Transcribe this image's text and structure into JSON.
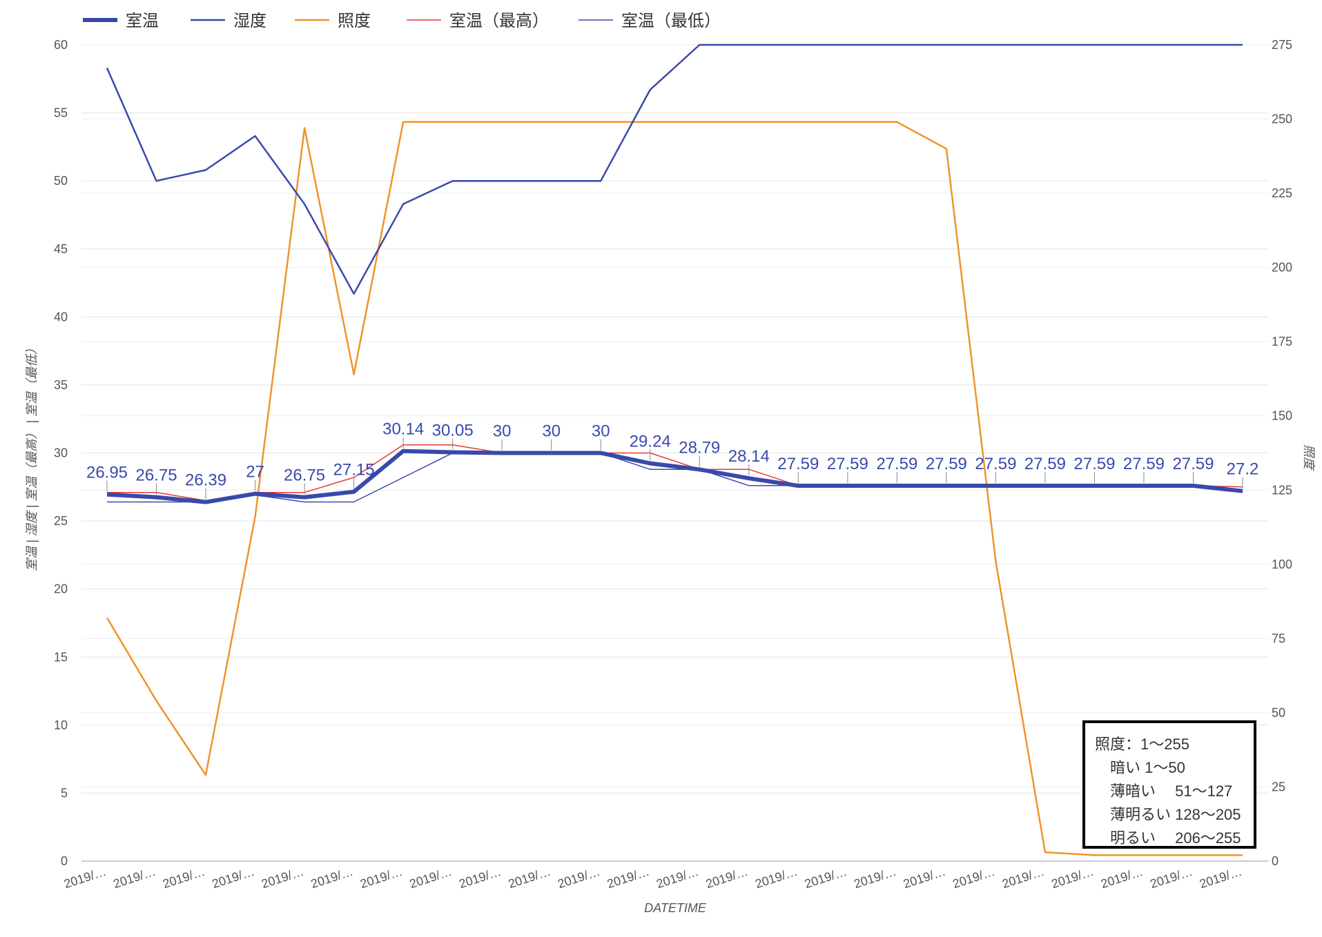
{
  "colors": {
    "room_temp": "#3949ab",
    "humidity": "#3949ab",
    "illuminance": "#f0932b",
    "temp_max": "#e53935",
    "temp_min": "#3949ab"
  },
  "note": {
    "lines": [
      "照度：1～255",
      "　暗い 1～50",
      "　薄暗い　 51～127",
      "　薄明るい 128～205",
      "　明るい　 206～255"
    ]
  },
  "chart_data": {
    "type": "line",
    "xlabel": "DATETIME",
    "ylabel_left": "室温 | 湿度 | 室温（最高） | 室温（最低）",
    "ylabel_right": "照度",
    "ylim_left": [
      0,
      60
    ],
    "ylim_right": [
      0,
      275
    ],
    "yticks_left": [
      0,
      5,
      10,
      15,
      20,
      25,
      30,
      35,
      40,
      45,
      50,
      55,
      60
    ],
    "yticks_right": [
      0,
      25,
      50,
      75,
      100,
      125,
      150,
      175,
      200,
      225,
      250,
      275
    ],
    "grid": true,
    "legend_position": "top-left",
    "categories": [
      "2019/…",
      "2019/…",
      "2019/…",
      "2019/…",
      "2019/…",
      "2019/…",
      "2019/…",
      "2019/…",
      "2019/…",
      "2019/…",
      "2019/…",
      "2019/…",
      "2019/…",
      "2019/…",
      "2019/…",
      "2019/…",
      "2019/…",
      "2019/…",
      "2019/…",
      "2019/…",
      "2019/…",
      "2019/…",
      "2019/…",
      "2019/…"
    ],
    "series": [
      {
        "name": "室温",
        "axis": "left",
        "style": "thick",
        "values": [
          26.95,
          26.75,
          26.39,
          27,
          26.75,
          27.15,
          30.14,
          30.05,
          30,
          30,
          30,
          29.24,
          28.79,
          28.14,
          27.59,
          27.59,
          27.59,
          27.59,
          27.59,
          27.59,
          27.59,
          27.59,
          27.59,
          27.2
        ],
        "data_labels": [
          "26.95",
          "26.75",
          "26.39",
          "27",
          "26.75",
          "27.15",
          "30.14",
          "30.05",
          "30",
          "30",
          "30",
          "29.24",
          "28.79",
          "28.14",
          "27.59",
          "27.59",
          "27.59",
          "27.59",
          "27.59",
          "27.59",
          "27.59",
          "27.59",
          "27.59",
          "27.2"
        ]
      },
      {
        "name": "湿度",
        "axis": "left",
        "style": "normal",
        "values": [
          58.3,
          50,
          50.8,
          53.3,
          48.3,
          41.7,
          48.3,
          50,
          50,
          50,
          50,
          56.7,
          60,
          60,
          60,
          60,
          60,
          60,
          60,
          60,
          60,
          60,
          60,
          60
        ]
      },
      {
        "name": "照度",
        "axis": "right",
        "style": "normal",
        "values": [
          82,
          54,
          29,
          116,
          247,
          164,
          249,
          249,
          249,
          249,
          249,
          249,
          249,
          249,
          249,
          249,
          249,
          240,
          101,
          3,
          2,
          2,
          2,
          2
        ]
      },
      {
        "name": "室温（最高）",
        "axis": "left",
        "style": "thin",
        "values": [
          27.1,
          27.1,
          26.5,
          27.1,
          27.1,
          28.2,
          30.6,
          30.6,
          30,
          30,
          30,
          30,
          28.8,
          28.8,
          27.6,
          27.6,
          27.6,
          27.6,
          27.6,
          27.6,
          27.6,
          27.6,
          27.6,
          27.5
        ]
      },
      {
        "name": "室温（最低）",
        "axis": "left",
        "style": "thin",
        "values": [
          26.4,
          26.4,
          26.4,
          26.9,
          26.4,
          26.4,
          28.2,
          30,
          30,
          30,
          30,
          28.8,
          28.8,
          27.6,
          27.6,
          27.6,
          27.6,
          27.6,
          27.6,
          27.6,
          27.6,
          27.6,
          27.6,
          27.2
        ]
      }
    ]
  }
}
